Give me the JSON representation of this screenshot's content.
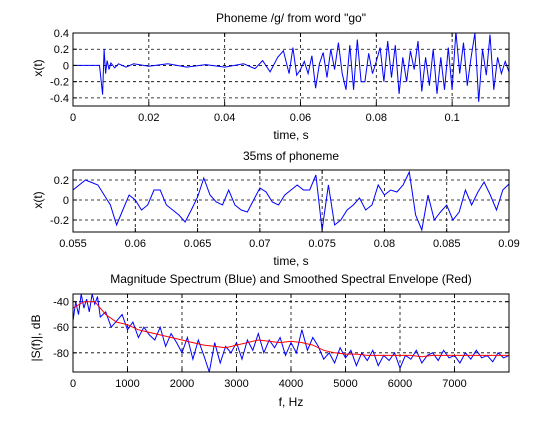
{
  "colors": {
    "blue": "#0000ff",
    "red": "#ff0000",
    "grid": "#000000",
    "axes": "#000000",
    "background": "#ffffff"
  },
  "chart_data": [
    {
      "type": "line",
      "title": "Phoneme /g/ from word \"go\"",
      "xlabel": "time, s",
      "ylabel": "x(t)",
      "xlim": [
        0,
        0.115
      ],
      "ylim": [
        -0.5,
        0.4
      ],
      "xticks": [
        0,
        0.02,
        0.04,
        0.06,
        0.08,
        0.1
      ],
      "xtick_labels": [
        "0",
        "0.02",
        "0.04",
        "0.06",
        "0.08",
        "0.1"
      ],
      "yticks": [
        -0.4,
        -0.2,
        0,
        0.2,
        0.4
      ],
      "ytick_labels": [
        "-0.4",
        "-0.2",
        "0",
        "0.2",
        "0.4"
      ],
      "grid": true,
      "series": [
        {
          "color": "#0000ff",
          "x": [
            0,
            0.007,
            0.0078,
            0.0082,
            0.0086,
            0.009,
            0.0095,
            0.01,
            0.011,
            0.012,
            0.014,
            0.016,
            0.02,
            0.025,
            0.03,
            0.035,
            0.04,
            0.045,
            0.048,
            0.05,
            0.052,
            0.054,
            0.0555,
            0.057,
            0.058,
            0.059,
            0.06,
            0.061,
            0.062,
            0.063,
            0.064,
            0.065,
            0.066,
            0.067,
            0.068,
            0.069,
            0.07,
            0.071,
            0.072,
            0.073,
            0.074,
            0.075,
            0.076,
            0.077,
            0.078,
            0.079,
            0.08,
            0.081,
            0.082,
            0.083,
            0.084,
            0.085,
            0.086,
            0.087,
            0.088,
            0.089,
            0.09,
            0.091,
            0.092,
            0.093,
            0.094,
            0.095,
            0.096,
            0.097,
            0.098,
            0.099,
            0.1,
            0.101,
            0.102,
            0.103,
            0.104,
            0.105,
            0.106,
            0.107,
            0.108,
            0.109,
            0.11,
            0.111,
            0.112,
            0.113,
            0.114,
            0.115
          ],
          "y": [
            0,
            0,
            -0.36,
            0.2,
            -0.1,
            0.06,
            -0.05,
            0.03,
            -0.03,
            0.02,
            -0.02,
            0.02,
            -0.01,
            0.02,
            -0.02,
            0.01,
            -0.02,
            0.02,
            -0.04,
            0.06,
            -0.08,
            0.1,
            0.18,
            -0.1,
            0.22,
            -0.12,
            -0.05,
            0.05,
            -0.1,
            0.12,
            -0.28,
            0.02,
            0.16,
            -0.15,
            0.2,
            -0.05,
            0.28,
            -0.1,
            -0.3,
            0.25,
            -0.3,
            0.32,
            -0.2,
            -0.2,
            0.15,
            -0.1,
            0.05,
            0.22,
            -0.2,
            0.3,
            -0.15,
            0.25,
            -0.35,
            0.1,
            -0.2,
            0.18,
            -0.05,
            0.3,
            -0.32,
            0.1,
            -0.25,
            0.2,
            -0.35,
            0.1,
            -0.3,
            0.22,
            -0.3,
            0.42,
            -0.1,
            0.28,
            -0.25,
            0.1,
            0.4,
            -0.45,
            0.2,
            -0.12,
            0.38,
            -0.3,
            0.1,
            -0.1,
            0.05,
            -0.08
          ]
        }
      ]
    },
    {
      "type": "line",
      "title": "35ms of phoneme",
      "xlabel": "time, s",
      "ylabel": "x(t)",
      "xlim": [
        0.055,
        0.09
      ],
      "ylim": [
        -0.32,
        0.3
      ],
      "xticks": [
        0.055,
        0.06,
        0.065,
        0.07,
        0.075,
        0.08,
        0.085,
        0.09
      ],
      "xtick_labels": [
        "0.055",
        "0.06",
        "0.065",
        "0.07",
        "0.075",
        "0.08",
        "0.085",
        "0.09"
      ],
      "yticks": [
        -0.2,
        0,
        0.2
      ],
      "ytick_labels": [
        "-0.2",
        "0",
        "0.2"
      ],
      "grid": true,
      "series": [
        {
          "color": "#0000ff",
          "x": [
            0.055,
            0.0555,
            0.056,
            0.057,
            0.058,
            0.0585,
            0.059,
            0.0595,
            0.06,
            0.0605,
            0.061,
            0.0615,
            0.062,
            0.0625,
            0.063,
            0.0635,
            0.064,
            0.0645,
            0.065,
            0.0655,
            0.066,
            0.0665,
            0.067,
            0.0675,
            0.068,
            0.0685,
            0.069,
            0.0695,
            0.07,
            0.0705,
            0.071,
            0.0715,
            0.072,
            0.0725,
            0.073,
            0.0735,
            0.074,
            0.0745,
            0.075,
            0.0755,
            0.076,
            0.0765,
            0.077,
            0.0775,
            0.078,
            0.0785,
            0.079,
            0.0795,
            0.08,
            0.0805,
            0.081,
            0.0815,
            0.082,
            0.0825,
            0.083,
            0.0835,
            0.084,
            0.0845,
            0.085,
            0.0855,
            0.086,
            0.0865,
            0.087,
            0.0875,
            0.088,
            0.0885,
            0.089,
            0.0895,
            0.09
          ],
          "y": [
            0.1,
            0.15,
            0.2,
            0.15,
            -0.05,
            -0.25,
            -0.1,
            0.05,
            0,
            -0.1,
            -0.05,
            0.1,
            0.1,
            -0.05,
            -0.1,
            -0.15,
            -0.22,
            -0.1,
            0.03,
            0.22,
            0.05,
            -0.02,
            -0.05,
            0.1,
            -0.05,
            -0.1,
            -0.12,
            0,
            0.12,
            0.08,
            -0.02,
            -0.05,
            0.05,
            0.1,
            0.15,
            0.1,
            0.1,
            0.25,
            -0.3,
            0.15,
            -0.25,
            -0.2,
            -0.1,
            -0.05,
            0.02,
            -0.1,
            -0.05,
            0.15,
            0.05,
            0.1,
            0.08,
            0.15,
            0.28,
            -0.15,
            -0.3,
            0.05,
            -0.2,
            -0.12,
            -0.05,
            -0.2,
            -0.12,
            0.1,
            -0.05,
            0.08,
            0.18,
            0.05,
            -0.1,
            0.1,
            0.16
          ]
        }
      ]
    },
    {
      "type": "line",
      "title": "Magnitude Spectrum (Blue) and Smoothed Spectral Envelope (Red)",
      "xlabel": "f, Hz",
      "ylabel": "|S(f)|, dB",
      "xlim": [
        0,
        8000
      ],
      "ylim": [
        -95,
        -34
      ],
      "xticks": [
        0,
        1000,
        2000,
        3000,
        4000,
        5000,
        6000,
        7000
      ],
      "xtick_labels": [
        "0",
        "1000",
        "2000",
        "3000",
        "4000",
        "5000",
        "6000",
        "7000"
      ],
      "yticks": [
        -40,
        -60,
        -80
      ],
      "ytick_labels": [
        "-40",
        "-60",
        "-80"
      ],
      "grid": true,
      "series": [
        {
          "color": "#0000ff",
          "x": [
            0,
            50,
            100,
            150,
            200,
            250,
            300,
            350,
            400,
            450,
            500,
            600,
            700,
            800,
            900,
            1000,
            1100,
            1200,
            1300,
            1400,
            1500,
            1600,
            1700,
            1800,
            1900,
            2000,
            2100,
            2200,
            2300,
            2400,
            2500,
            2600,
            2700,
            2800,
            2900,
            3000,
            3100,
            3200,
            3300,
            3400,
            3500,
            3600,
            3700,
            3800,
            3900,
            4000,
            4100,
            4200,
            4300,
            4400,
            4500,
            4600,
            4700,
            4800,
            4900,
            5000,
            5100,
            5200,
            5300,
            5400,
            5500,
            5600,
            5700,
            5800,
            5900,
            6000,
            6100,
            6200,
            6300,
            6400,
            6500,
            6600,
            6700,
            6800,
            6900,
            7000,
            7100,
            7200,
            7300,
            7400,
            7500,
            7600,
            7700,
            7800,
            7900,
            8000
          ],
          "y": [
            -55,
            -40,
            -50,
            -34,
            -45,
            -38,
            -48,
            -34,
            -42,
            -36,
            -52,
            -48,
            -60,
            -55,
            -50,
            -62,
            -56,
            -68,
            -60,
            -66,
            -70,
            -60,
            -75,
            -65,
            -72,
            -80,
            -68,
            -85,
            -70,
            -82,
            -95,
            -72,
            -88,
            -75,
            -80,
            -72,
            -85,
            -70,
            -78,
            -65,
            -80,
            -70,
            -76,
            -68,
            -82,
            -72,
            -80,
            -62,
            -78,
            -68,
            -75,
            -85,
            -80,
            -88,
            -76,
            -84,
            -78,
            -90,
            -80,
            -86,
            -78,
            -90,
            -82,
            -86,
            -80,
            -92,
            -82,
            -85,
            -78,
            -88,
            -82,
            -80,
            -86,
            -78,
            -84,
            -82,
            -88,
            -80,
            -85,
            -78,
            -84,
            -82,
            -87,
            -80,
            -84,
            -82
          ]
        },
        {
          "color": "#ff0000",
          "x": [
            0,
            200,
            400,
            600,
            800,
            1000,
            1200,
            1400,
            1600,
            1800,
            2000,
            2200,
            2400,
            2600,
            2800,
            3000,
            3200,
            3400,
            3600,
            3800,
            4000,
            4200,
            4400,
            4600,
            4800,
            5000,
            5200,
            5400,
            5600,
            5800,
            6000,
            6200,
            6400,
            6600,
            6800,
            7000,
            7200,
            7400,
            7600,
            7800,
            8000
          ],
          "y": [
            -45,
            -40,
            -40,
            -50,
            -56,
            -58,
            -62,
            -64,
            -66,
            -68,
            -70,
            -72,
            -74,
            -75,
            -76,
            -74,
            -72,
            -70,
            -71,
            -72,
            -71,
            -72,
            -74,
            -78,
            -80,
            -81,
            -81,
            -82,
            -82,
            -82,
            -82,
            -82,
            -83,
            -82,
            -82,
            -82,
            -82,
            -82,
            -82,
            -82,
            -82
          ]
        }
      ]
    }
  ]
}
